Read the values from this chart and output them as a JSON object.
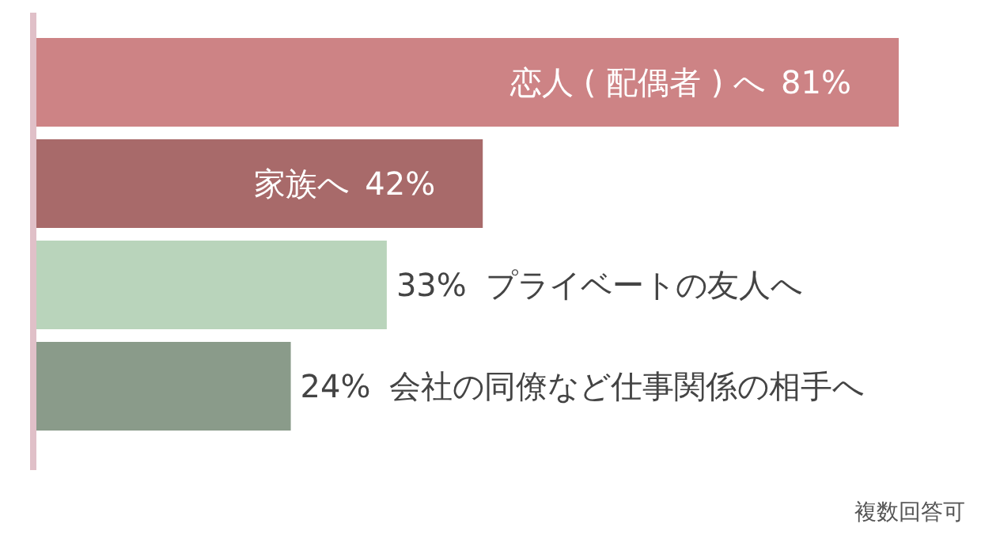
{
  "chart_data": {
    "type": "bar",
    "orientation": "horizontal",
    "categories": [
      "恋人 ( 配偶者 ) へ",
      "家族へ",
      "プライベートの友人へ",
      "会社の同僚など仕事関係の相手へ"
    ],
    "values": [
      81,
      42,
      33,
      24
    ],
    "value_labels": [
      "81%",
      "42%",
      "33%",
      "24%"
    ],
    "colors": [
      "#cd8385",
      "#a86a6a",
      "#b9d4bb",
      "#8a9b8a"
    ],
    "relative": false,
    "annotations": [
      "複数回答可"
    ]
  }
}
